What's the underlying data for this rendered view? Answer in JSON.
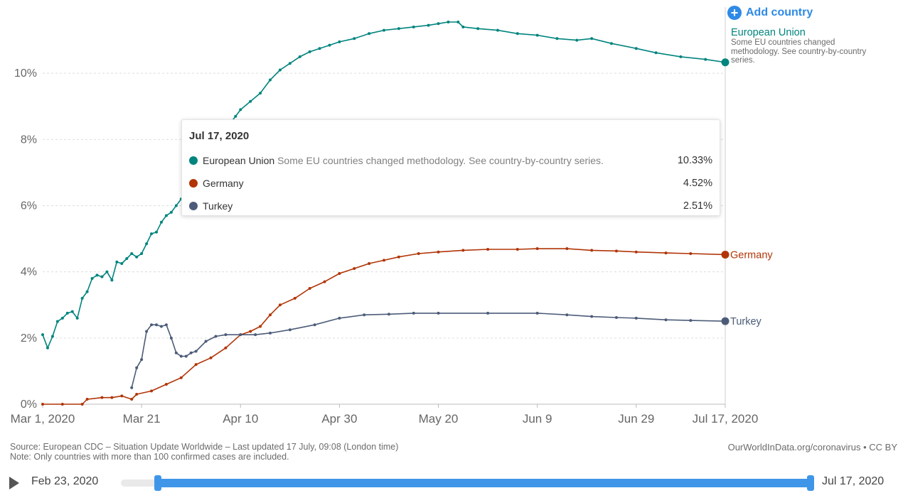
{
  "add_country_label": "Add country",
  "tooltip": {
    "date": "Jul 17, 2020",
    "rows": [
      {
        "name": "European Union",
        "note": "Some EU countries changed methodology. See country-by-country series.",
        "value": "10.33%",
        "color": "#00847e"
      },
      {
        "name": "Germany",
        "note": "",
        "value": "4.52%",
        "color": "#b13507"
      },
      {
        "name": "Turkey",
        "note": "",
        "value": "2.51%",
        "color": "#4c5c78"
      }
    ]
  },
  "eu_label": {
    "name": "European Union",
    "note": "Some EU countries changed methodology. See country-by-country series."
  },
  "source_line1": "Source: European CDC – Situation Update Worldwide – Last updated 17 July, 09:08 (London time)",
  "source_line2": "Note: Only countries with more than 100 confirmed cases are included.",
  "credit": "OurWorldInData.org/coronavirus • CC BY",
  "timeline": {
    "start": "Feb 23, 2020",
    "end": "Jul 17, 2020"
  },
  "chart_data": {
    "type": "line",
    "title": "",
    "xlabel": "",
    "ylabel": "",
    "ylim": [
      0,
      12
    ],
    "xlim": [
      "2020-03-01",
      "2020-07-17"
    ],
    "y_ticks": [
      "0%",
      "2%",
      "4%",
      "6%",
      "8%",
      "10%"
    ],
    "x_ticks": [
      "Mar 1, 2020",
      "Mar 21",
      "Apr 10",
      "Apr 30",
      "May 20",
      "Jun 9",
      "Jun 29",
      "Jul 17, 2020"
    ],
    "grid": true,
    "legend": "end-of-line labels",
    "series": [
      {
        "name": "European Union",
        "color": "#00847e",
        "points": [
          [
            "2020-03-01",
            2.1
          ],
          [
            "2020-03-02",
            1.7
          ],
          [
            "2020-03-03",
            2.05
          ],
          [
            "2020-03-04",
            2.5
          ],
          [
            "2020-03-05",
            2.6
          ],
          [
            "2020-03-06",
            2.75
          ],
          [
            "2020-03-07",
            2.8
          ],
          [
            "2020-03-08",
            2.6
          ],
          [
            "2020-03-09",
            3.2
          ],
          [
            "2020-03-10",
            3.4
          ],
          [
            "2020-03-11",
            3.8
          ],
          [
            "2020-03-12",
            3.9
          ],
          [
            "2020-03-13",
            3.85
          ],
          [
            "2020-03-14",
            4.0
          ],
          [
            "2020-03-15",
            3.75
          ],
          [
            "2020-03-16",
            4.3
          ],
          [
            "2020-03-17",
            4.25
          ],
          [
            "2020-03-18",
            4.4
          ],
          [
            "2020-03-19",
            4.55
          ],
          [
            "2020-03-20",
            4.45
          ],
          [
            "2020-03-21",
            4.55
          ],
          [
            "2020-03-22",
            4.85
          ],
          [
            "2020-03-23",
            5.15
          ],
          [
            "2020-03-24",
            5.2
          ],
          [
            "2020-03-25",
            5.5
          ],
          [
            "2020-03-26",
            5.7
          ],
          [
            "2020-03-27",
            5.8
          ],
          [
            "2020-03-28",
            6.0
          ],
          [
            "2020-03-29",
            6.2
          ],
          [
            "2020-03-30",
            6.5
          ],
          [
            "2020-04-01",
            6.8
          ],
          [
            "2020-04-03",
            7.3
          ],
          [
            "2020-04-05",
            7.8
          ],
          [
            "2020-04-07",
            8.3
          ],
          [
            "2020-04-09",
            8.7
          ],
          [
            "2020-04-10",
            8.9
          ],
          [
            "2020-04-12",
            9.15
          ],
          [
            "2020-04-14",
            9.4
          ],
          [
            "2020-04-16",
            9.8
          ],
          [
            "2020-04-18",
            10.1
          ],
          [
            "2020-04-20",
            10.3
          ],
          [
            "2020-04-22",
            10.5
          ],
          [
            "2020-04-24",
            10.65
          ],
          [
            "2020-04-26",
            10.75
          ],
          [
            "2020-04-28",
            10.85
          ],
          [
            "2020-04-30",
            10.95
          ],
          [
            "2020-05-03",
            11.05
          ],
          [
            "2020-05-06",
            11.2
          ],
          [
            "2020-05-09",
            11.3
          ],
          [
            "2020-05-12",
            11.35
          ],
          [
            "2020-05-15",
            11.4
          ],
          [
            "2020-05-18",
            11.45
          ],
          [
            "2020-05-20",
            11.5
          ],
          [
            "2020-05-22",
            11.55
          ],
          [
            "2020-05-24",
            11.55
          ],
          [
            "2020-05-25",
            11.4
          ],
          [
            "2020-05-28",
            11.35
          ],
          [
            "2020-06-01",
            11.3
          ],
          [
            "2020-06-05",
            11.2
          ],
          [
            "2020-06-09",
            11.15
          ],
          [
            "2020-06-13",
            11.05
          ],
          [
            "2020-06-17",
            11.0
          ],
          [
            "2020-06-20",
            11.05
          ],
          [
            "2020-06-24",
            10.9
          ],
          [
            "2020-06-29",
            10.75
          ],
          [
            "2020-07-03",
            10.62
          ],
          [
            "2020-07-08",
            10.5
          ],
          [
            "2020-07-13",
            10.42
          ],
          [
            "2020-07-17",
            10.33
          ]
        ]
      },
      {
        "name": "Germany",
        "color": "#b13507",
        "points": [
          [
            "2020-03-01",
            0.0
          ],
          [
            "2020-03-05",
            0.0
          ],
          [
            "2020-03-09",
            0.0
          ],
          [
            "2020-03-10",
            0.15
          ],
          [
            "2020-03-13",
            0.2
          ],
          [
            "2020-03-15",
            0.2
          ],
          [
            "2020-03-17",
            0.25
          ],
          [
            "2020-03-19",
            0.15
          ],
          [
            "2020-03-20",
            0.3
          ],
          [
            "2020-03-23",
            0.4
          ],
          [
            "2020-03-26",
            0.6
          ],
          [
            "2020-03-29",
            0.8
          ],
          [
            "2020-04-01",
            1.2
          ],
          [
            "2020-04-04",
            1.4
          ],
          [
            "2020-04-07",
            1.7
          ],
          [
            "2020-04-10",
            2.1
          ],
          [
            "2020-04-12",
            2.2
          ],
          [
            "2020-04-14",
            2.35
          ],
          [
            "2020-04-16",
            2.7
          ],
          [
            "2020-04-18",
            3.0
          ],
          [
            "2020-04-21",
            3.2
          ],
          [
            "2020-04-24",
            3.5
          ],
          [
            "2020-04-27",
            3.7
          ],
          [
            "2020-04-30",
            3.95
          ],
          [
            "2020-05-03",
            4.1
          ],
          [
            "2020-05-06",
            4.25
          ],
          [
            "2020-05-09",
            4.35
          ],
          [
            "2020-05-12",
            4.45
          ],
          [
            "2020-05-16",
            4.55
          ],
          [
            "2020-05-20",
            4.6
          ],
          [
            "2020-05-25",
            4.65
          ],
          [
            "2020-05-30",
            4.68
          ],
          [
            "2020-06-05",
            4.68
          ],
          [
            "2020-06-09",
            4.7
          ],
          [
            "2020-06-15",
            4.7
          ],
          [
            "2020-06-20",
            4.65
          ],
          [
            "2020-06-25",
            4.63
          ],
          [
            "2020-06-29",
            4.6
          ],
          [
            "2020-07-05",
            4.57
          ],
          [
            "2020-07-10",
            4.55
          ],
          [
            "2020-07-17",
            4.52
          ]
        ]
      },
      {
        "name": "Turkey",
        "color": "#4c5c78",
        "points": [
          [
            "2020-03-19",
            0.5
          ],
          [
            "2020-03-20",
            1.1
          ],
          [
            "2020-03-21",
            1.35
          ],
          [
            "2020-03-22",
            2.2
          ],
          [
            "2020-03-23",
            2.4
          ],
          [
            "2020-03-24",
            2.4
          ],
          [
            "2020-03-25",
            2.35
          ],
          [
            "2020-03-26",
            2.4
          ],
          [
            "2020-03-27",
            2.0
          ],
          [
            "2020-03-28",
            1.55
          ],
          [
            "2020-03-29",
            1.45
          ],
          [
            "2020-03-30",
            1.45
          ],
          [
            "2020-03-31",
            1.55
          ],
          [
            "2020-04-01",
            1.6
          ],
          [
            "2020-04-03",
            1.9
          ],
          [
            "2020-04-05",
            2.05
          ],
          [
            "2020-04-07",
            2.1
          ],
          [
            "2020-04-10",
            2.1
          ],
          [
            "2020-04-13",
            2.1
          ],
          [
            "2020-04-16",
            2.15
          ],
          [
            "2020-04-20",
            2.25
          ],
          [
            "2020-04-25",
            2.4
          ],
          [
            "2020-04-30",
            2.6
          ],
          [
            "2020-05-05",
            2.7
          ],
          [
            "2020-05-10",
            2.72
          ],
          [
            "2020-05-15",
            2.75
          ],
          [
            "2020-05-20",
            2.75
          ],
          [
            "2020-05-30",
            2.75
          ],
          [
            "2020-06-09",
            2.75
          ],
          [
            "2020-06-15",
            2.7
          ],
          [
            "2020-06-20",
            2.65
          ],
          [
            "2020-06-25",
            2.62
          ],
          [
            "2020-06-29",
            2.6
          ],
          [
            "2020-07-05",
            2.55
          ],
          [
            "2020-07-10",
            2.53
          ],
          [
            "2020-07-17",
            2.51
          ]
        ]
      }
    ]
  }
}
